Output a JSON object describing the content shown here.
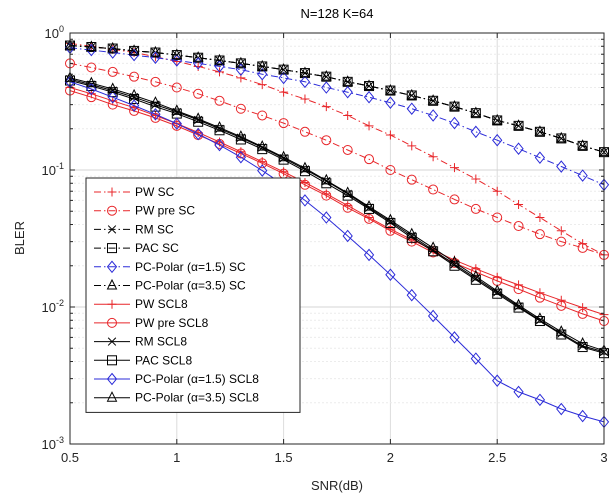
{
  "chart_data": {
    "type": "line",
    "title": "N=128 K=64",
    "xlabel": "SNR(dB)",
    "ylabel": "BLER",
    "xlim": [
      0.5,
      3
    ],
    "ylim": [
      0.001,
      1
    ],
    "yscale": "log",
    "grid": true,
    "legend_position": "bottom-left",
    "x_ticks": [
      "0.5",
      "1",
      "1.5",
      "2",
      "2.5",
      "3"
    ],
    "y_ticks": [
      {
        "base": "10",
        "exp": "-3"
      },
      {
        "base": "10",
        "exp": "-2"
      },
      {
        "base": "10",
        "exp": "-1"
      },
      {
        "base": "10",
        "exp": "0"
      }
    ],
    "x": [
      0.5,
      0.6,
      0.7,
      0.8,
      0.9,
      1.0,
      1.1,
      1.2,
      1.3,
      1.4,
      1.5,
      1.6,
      1.7,
      1.8,
      1.9,
      2.0,
      2.1,
      2.2,
      2.3,
      2.4,
      2.5,
      2.6,
      2.7,
      2.8,
      2.9,
      3.0
    ],
    "series": [
      {
        "name": "PW SC",
        "color": "#e8262a",
        "dash": "dashdot",
        "marker": "plus",
        "values": [
          0.84,
          0.8,
          0.76,
          0.72,
          0.67,
          0.62,
          0.57,
          0.52,
          0.47,
          0.42,
          0.37,
          0.33,
          0.29,
          0.25,
          0.21,
          0.18,
          0.15,
          0.125,
          0.104,
          0.086,
          0.07,
          0.056,
          0.045,
          0.036,
          0.029,
          0.024
        ]
      },
      {
        "name": "PW pre SC",
        "color": "#e8262a",
        "dash": "dashdot",
        "marker": "circle",
        "values": [
          0.6,
          0.56,
          0.52,
          0.48,
          0.44,
          0.4,
          0.36,
          0.32,
          0.28,
          0.25,
          0.22,
          0.19,
          0.165,
          0.14,
          0.12,
          0.1,
          0.085,
          0.072,
          0.061,
          0.052,
          0.045,
          0.039,
          0.034,
          0.03,
          0.027,
          0.024
        ]
      },
      {
        "name": "RM SC",
        "color": "#000000",
        "dash": "dashdot",
        "marker": "x",
        "values": [
          0.81,
          0.79,
          0.77,
          0.74,
          0.72,
          0.69,
          0.66,
          0.63,
          0.6,
          0.57,
          0.54,
          0.51,
          0.48,
          0.44,
          0.41,
          0.38,
          0.35,
          0.32,
          0.29,
          0.26,
          0.23,
          0.21,
          0.19,
          0.17,
          0.15,
          0.135
        ]
      },
      {
        "name": "PAC SC",
        "color": "#000000",
        "dash": "dashdot",
        "marker": "square",
        "values": [
          0.81,
          0.79,
          0.77,
          0.74,
          0.72,
          0.69,
          0.66,
          0.63,
          0.6,
          0.57,
          0.54,
          0.51,
          0.48,
          0.44,
          0.41,
          0.38,
          0.35,
          0.32,
          0.29,
          0.26,
          0.23,
          0.21,
          0.19,
          0.17,
          0.15,
          0.135
        ]
      },
      {
        "name": "PC-Polar (α=1.5) SC",
        "color": "#2b2bd8",
        "dash": "dashdot",
        "marker": "diamond",
        "values": [
          0.78,
          0.75,
          0.72,
          0.69,
          0.66,
          0.63,
          0.6,
          0.57,
          0.54,
          0.5,
          0.47,
          0.44,
          0.4,
          0.37,
          0.34,
          0.31,
          0.28,
          0.25,
          0.22,
          0.19,
          0.165,
          0.143,
          0.123,
          0.106,
          0.091,
          0.078
        ]
      },
      {
        "name": "PC-Polar (α=3.5) SC",
        "color": "#000000",
        "dash": "dashdot",
        "marker": "triangle",
        "values": [
          0.81,
          0.79,
          0.77,
          0.74,
          0.72,
          0.69,
          0.66,
          0.63,
          0.6,
          0.57,
          0.54,
          0.51,
          0.48,
          0.44,
          0.41,
          0.38,
          0.35,
          0.32,
          0.29,
          0.26,
          0.23,
          0.21,
          0.19,
          0.17,
          0.15,
          0.135
        ]
      },
      {
        "name": "PW SCL8",
        "color": "#e8262a",
        "dash": "solid",
        "marker": "plus",
        "values": [
          0.4,
          0.36,
          0.32,
          0.285,
          0.25,
          0.218,
          0.188,
          0.16,
          0.136,
          0.115,
          0.097,
          0.081,
          0.067,
          0.055,
          0.045,
          0.037,
          0.031,
          0.026,
          0.022,
          0.019,
          0.0165,
          0.0145,
          0.0127,
          0.0112,
          0.0099,
          0.0088
        ]
      },
      {
        "name": "PW pre SCL8",
        "color": "#e8262a",
        "dash": "solid",
        "marker": "circle",
        "values": [
          0.38,
          0.34,
          0.3,
          0.27,
          0.24,
          0.21,
          0.18,
          0.155,
          0.132,
          0.112,
          0.094,
          0.078,
          0.065,
          0.053,
          0.044,
          0.036,
          0.03,
          0.025,
          0.021,
          0.018,
          0.0155,
          0.0135,
          0.0117,
          0.0102,
          0.0089,
          0.0079
        ]
      },
      {
        "name": "RM SCL8",
        "color": "#000000",
        "dash": "solid",
        "marker": "x",
        "values": [
          0.46,
          0.42,
          0.38,
          0.34,
          0.3,
          0.265,
          0.232,
          0.2,
          0.172,
          0.146,
          0.122,
          0.101,
          0.083,
          0.067,
          0.053,
          0.042,
          0.033,
          0.026,
          0.0205,
          0.0162,
          0.0128,
          0.0101,
          0.008,
          0.0064,
          0.0052,
          0.0047
        ]
      },
      {
        "name": "PAC SCL8",
        "color": "#000000",
        "dash": "solid",
        "marker": "square",
        "values": [
          0.45,
          0.41,
          0.37,
          0.33,
          0.29,
          0.258,
          0.225,
          0.195,
          0.167,
          0.142,
          0.119,
          0.098,
          0.08,
          0.065,
          0.052,
          0.041,
          0.032,
          0.0255,
          0.02,
          0.0158,
          0.0125,
          0.0099,
          0.0079,
          0.0063,
          0.0051,
          0.0046
        ]
      },
      {
        "name": "PC-Polar (α=1.5)  SCL8",
        "color": "#2b2bd8",
        "dash": "solid",
        "marker": "diamond",
        "values": [
          0.44,
          0.39,
          0.34,
          0.295,
          0.255,
          0.218,
          0.183,
          0.152,
          0.124,
          0.099,
          0.078,
          0.06,
          0.045,
          0.033,
          0.024,
          0.0172,
          0.0122,
          0.0086,
          0.006,
          0.0042,
          0.0029,
          0.0024,
          0.0021,
          0.0018,
          0.0016,
          0.00145
        ]
      },
      {
        "name": "PC-Polar (α=3.5) SCL8",
        "color": "#000000",
        "dash": "solid",
        "marker": "triangle",
        "values": [
          0.47,
          0.43,
          0.39,
          0.35,
          0.31,
          0.27,
          0.236,
          0.204,
          0.175,
          0.148,
          0.124,
          0.103,
          0.084,
          0.068,
          0.054,
          0.043,
          0.034,
          0.027,
          0.0212,
          0.0167,
          0.0131,
          0.0103,
          0.0082,
          0.0066,
          0.0054,
          0.0048
        ]
      }
    ]
  }
}
